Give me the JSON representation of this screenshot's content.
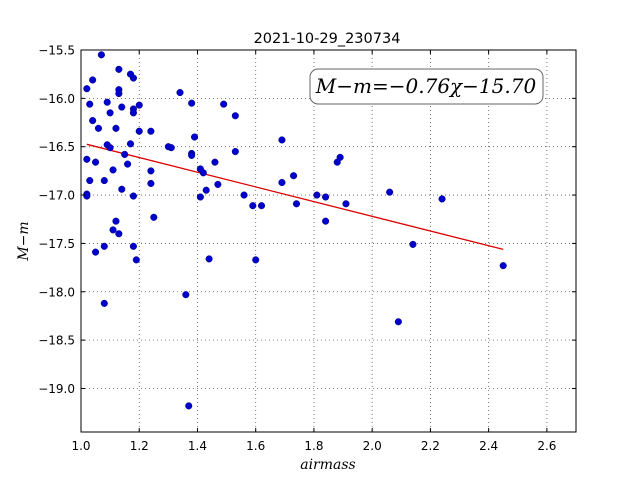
{
  "chart_data": {
    "type": "scatter",
    "title": "2021-10-29_230734",
    "xlabel": "airmass",
    "ylabel": "M−m",
    "xlim": [
      1.0,
      2.7
    ],
    "ylim": [
      -15.5,
      -19.45
    ],
    "y_inverted": true,
    "grid": true,
    "xticks": [
      "1.0",
      "1.2",
      "1.4",
      "1.6",
      "1.8",
      "2.0",
      "2.2",
      "2.4",
      "2.6"
    ],
    "yticks": [
      "−15.5",
      "−16.0",
      "−16.5",
      "−17.0",
      "−17.5",
      "−18.0",
      "−18.5",
      "−19.0"
    ],
    "xtick_values": [
      1.0,
      1.2,
      1.4,
      1.6,
      1.8,
      2.0,
      2.2,
      2.4,
      2.6
    ],
    "ytick_values": [
      -15.5,
      -16.0,
      -16.5,
      -17.0,
      -17.5,
      -18.0,
      -18.5,
      -19.0
    ],
    "point_color": "#0000cc",
    "fit_color": "#dd0000",
    "fit_label": "M−m=−0.76χ−15.70",
    "fit": {
      "slope": -0.76,
      "intercept": -15.7,
      "x_range": [
        1.02,
        2.45
      ]
    },
    "points": [
      [
        1.02,
        -15.9
      ],
      [
        1.03,
        -16.06
      ],
      [
        1.04,
        -15.81
      ],
      [
        1.04,
        -16.23
      ],
      [
        1.02,
        -16.63
      ],
      [
        1.05,
        -16.66
      ],
      [
        1.03,
        -16.85
      ],
      [
        1.02,
        -16.99
      ],
      [
        1.02,
        -17.01
      ],
      [
        1.07,
        -15.55
      ],
      [
        1.06,
        -16.31
      ],
      [
        1.09,
        -16.04
      ],
      [
        1.1,
        -16.15
      ],
      [
        1.09,
        -16.48
      ],
      [
        1.1,
        -16.51
      ],
      [
        1.08,
        -16.85
      ],
      [
        1.11,
        -16.74
      ],
      [
        1.12,
        -16.31
      ],
      [
        1.13,
        -15.7
      ],
      [
        1.13,
        -15.91
      ],
      [
        1.13,
        -15.95
      ],
      [
        1.14,
        -16.09
      ],
      [
        1.14,
        -16.94
      ],
      [
        1.15,
        -16.58
      ],
      [
        1.16,
        -16.68
      ],
      [
        1.17,
        -15.75
      ],
      [
        1.18,
        -15.79
      ],
      [
        1.17,
        -16.47
      ],
      [
        1.18,
        -16.11
      ],
      [
        1.18,
        -16.15
      ],
      [
        1.2,
        -16.07
      ],
      [
        1.2,
        -16.34
      ],
      [
        1.18,
        -17.01
      ],
      [
        1.11,
        -17.36
      ],
      [
        1.12,
        -17.27
      ],
      [
        1.13,
        -17.4
      ],
      [
        1.08,
        -17.53
      ],
      [
        1.05,
        -17.59
      ],
      [
        1.18,
        -17.53
      ],
      [
        1.19,
        -17.67
      ],
      [
        1.08,
        -18.12
      ],
      [
        1.24,
        -16.34
      ],
      [
        1.24,
        -16.75
      ],
      [
        1.24,
        -16.88
      ],
      [
        1.25,
        -17.23
      ],
      [
        1.3,
        -16.5
      ],
      [
        1.31,
        -16.51
      ],
      [
        1.34,
        -15.94
      ],
      [
        1.38,
        -16.05
      ],
      [
        1.38,
        -16.57
      ],
      [
        1.38,
        -16.59
      ],
      [
        1.39,
        -16.4
      ],
      [
        1.41,
        -16.73
      ],
      [
        1.42,
        -16.77
      ],
      [
        1.41,
        -17.02
      ],
      [
        1.43,
        -16.95
      ],
      [
        1.46,
        -16.66
      ],
      [
        1.47,
        -16.89
      ],
      [
        1.49,
        -16.06
      ],
      [
        1.44,
        -17.66
      ],
      [
        1.36,
        -18.03
      ],
      [
        1.37,
        -19.18
      ],
      [
        1.53,
        -16.18
      ],
      [
        1.53,
        -16.55
      ],
      [
        1.56,
        -17.0
      ],
      [
        1.59,
        -17.11
      ],
      [
        1.62,
        -17.11
      ],
      [
        1.6,
        -17.67
      ],
      [
        1.69,
        -16.43
      ],
      [
        1.69,
        -16.87
      ],
      [
        1.73,
        -16.8
      ],
      [
        1.74,
        -17.09
      ],
      [
        1.81,
        -17.0
      ],
      [
        1.84,
        -17.02
      ],
      [
        1.84,
        -17.27
      ],
      [
        1.88,
        -16.66
      ],
      [
        1.89,
        -16.61
      ],
      [
        1.91,
        -17.09
      ],
      [
        2.06,
        -16.97
      ],
      [
        2.09,
        -18.31
      ],
      [
        2.14,
        -17.51
      ],
      [
        2.24,
        -17.04
      ],
      [
        2.45,
        -17.73
      ]
    ]
  }
}
